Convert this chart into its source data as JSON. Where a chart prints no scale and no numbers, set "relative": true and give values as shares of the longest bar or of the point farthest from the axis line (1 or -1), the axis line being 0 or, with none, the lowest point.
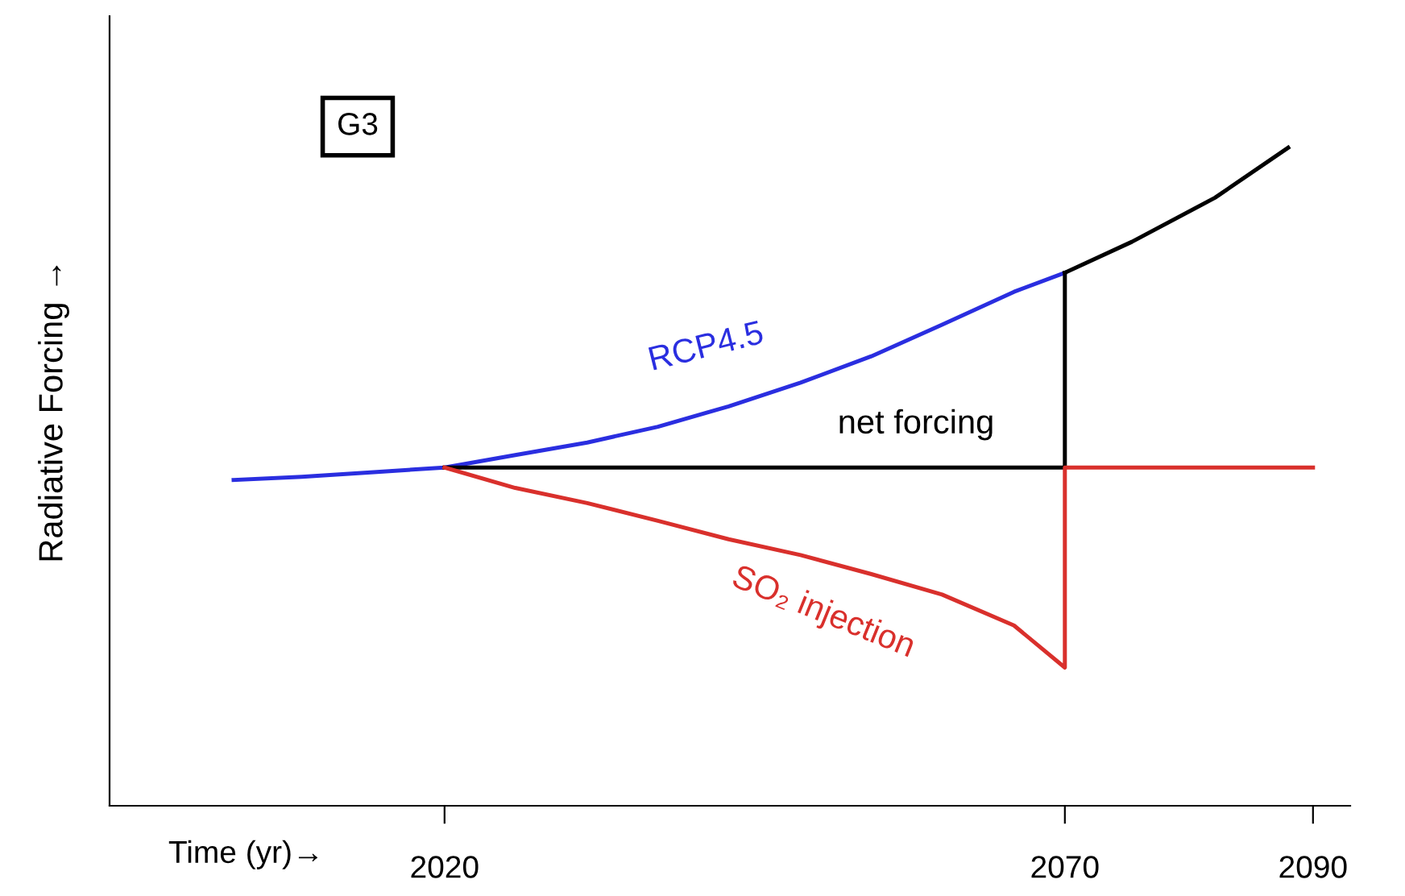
{
  "chart_data": {
    "type": "line",
    "relative": true,
    "xlabel": "Time (yr)→",
    "ylabel": "Radiative Forcing →",
    "annotations": [
      "G3"
    ],
    "xlim": [
      1993,
      2093
    ],
    "xticks": [
      2020,
      2070,
      2090
    ],
    "tick_labels": "x",
    "grid": false,
    "legend": false,
    "series": [
      {
        "name": "RCP4.5",
        "color": "#2a2ee0",
        "x": [
          2003,
          2008.5,
          2014.3,
          2020,
          2025.7,
          2031.5,
          2037.2,
          2042.9,
          2048.7,
          2054.4,
          2060.1,
          2065.9,
          2070
        ],
        "values": [
          0.495,
          0.5,
          0.507,
          0.514,
          0.533,
          0.552,
          0.576,
          0.607,
          0.643,
          0.683,
          0.731,
          0.781,
          0.81
        ]
      },
      {
        "color": "#000000",
        "x": [
          2070,
          2075.4,
          2082.1,
          2088
        ],
        "values": [
          0.81,
          0.857,
          0.924,
          1.0
        ]
      },
      {
        "name": "net forcing",
        "color": "#000000",
        "x": [
          2020,
          2070,
          2070
        ],
        "values": [
          0.514,
          0.514,
          0.81
        ]
      },
      {
        "name": "SO₂ injection",
        "color": "#d9302c",
        "x": [
          2020,
          2025.7,
          2031.5,
          2037.2,
          2042.9,
          2048.7,
          2054.4,
          2060.1,
          2065.9,
          2070,
          2070,
          2090
        ],
        "values": [
          0.514,
          0.483,
          0.46,
          0.433,
          0.405,
          0.381,
          0.352,
          0.321,
          0.274,
          0.21,
          0.514,
          0.514
        ]
      }
    ]
  }
}
